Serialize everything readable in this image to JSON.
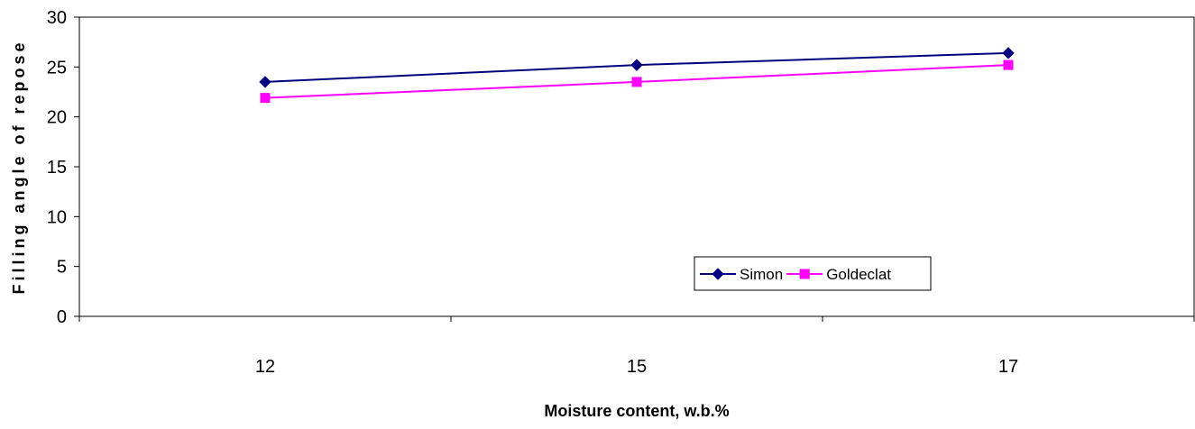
{
  "chart_data": {
    "type": "line",
    "title": "",
    "xlabel": "Moisture content, w.b.%",
    "ylabel": "Filling angle of repose",
    "categories": [
      "12",
      "15",
      "17"
    ],
    "ylim": [
      0,
      30
    ],
    "yticks": [
      0,
      5,
      10,
      15,
      20,
      25,
      30
    ],
    "grid": false,
    "legend_position": "bottom-right inside plot",
    "series": [
      {
        "name": "Simon",
        "values": [
          23.5,
          25.2,
          26.4
        ],
        "color": "#000080",
        "marker": "diamond"
      },
      {
        "name": "Goldeclat",
        "values": [
          21.9,
          23.5,
          25.2
        ],
        "color": "#ff00ff",
        "marker": "square"
      }
    ]
  }
}
